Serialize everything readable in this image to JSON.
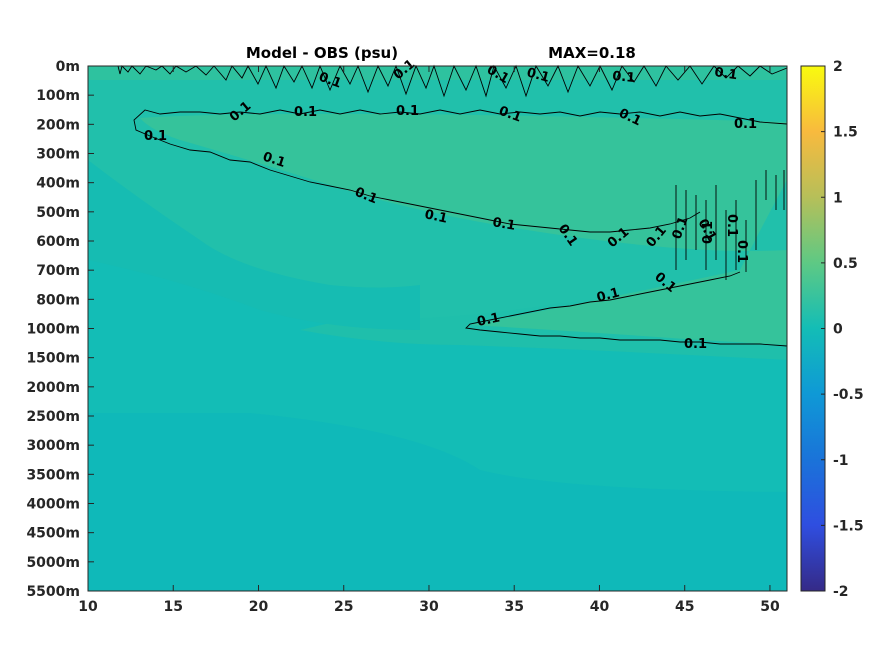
{
  "chart_data": {
    "type": "heatmap",
    "title": "Model - OBS (psu)",
    "max_label": "MAX=0.18",
    "x_ticks": [
      "10",
      "15",
      "20",
      "25",
      "30",
      "35",
      "40",
      "45",
      "50"
    ],
    "x_tick_values": [
      10,
      15,
      20,
      25,
      30,
      35,
      40,
      45,
      50
    ],
    "xlim": [
      10,
      51
    ],
    "y_ticks": [
      "0m",
      "100m",
      "200m",
      "300m",
      "400m",
      "500m",
      "600m",
      "700m",
      "800m",
      "1000m",
      "1500m",
      "2000m",
      "2500m",
      "3000m",
      "3500m",
      "4000m",
      "4500m",
      "5000m",
      "5500m"
    ],
    "colorbar": {
      "range": [
        -2,
        2
      ],
      "ticks": [
        "2",
        "1.5",
        "1",
        "0.5",
        "0",
        "-0.5",
        "-1",
        "-1.5",
        "-2"
      ],
      "tick_values": [
        2,
        1.5,
        1,
        0.5,
        0,
        -0.5,
        -1,
        -1.5,
        -2
      ],
      "colormap": "parula"
    },
    "contour_level": 0.1,
    "contour_label": "0.1",
    "field_colors": {
      "near_zero": "#13bdb6",
      "slightly_positive": "#1fbfad",
      "positive_0_1": "#34c39c",
      "negative_slight": "#0fb7bc"
    }
  }
}
